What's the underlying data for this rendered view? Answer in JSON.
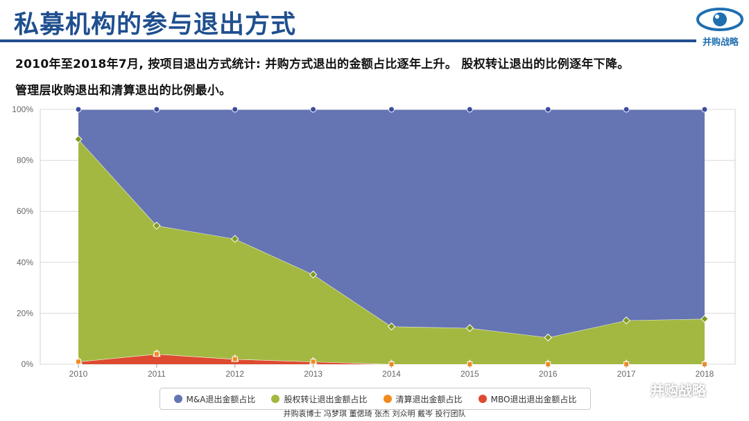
{
  "header": {
    "title": "私募机构的参与退出方式",
    "logo_text": "并购战略",
    "logo_icon": "eye-icon"
  },
  "description": {
    "line1": "2010年至2018年7月, 按项目退出方式统计: 并购方式退出的金额占比逐年上升。 股权转让退出的比例逐年下降。",
    "line2": "管理层收购退出和清算退出的比例最小。"
  },
  "chart_data": {
    "type": "area",
    "stacked": true,
    "x": [
      "2010",
      "2011",
      "2012",
      "2013",
      "2014",
      "2015",
      "2016",
      "2017",
      "2018"
    ],
    "ylim": [
      0,
      100
    ],
    "yticks": [
      "0%",
      "20%",
      "40%",
      "60%",
      "80%",
      "100%"
    ],
    "grid": true,
    "legend_position": "bottom",
    "series": [
      {
        "name": "M&A退出金额占比",
        "color": "#6574b2",
        "marker": "circle",
        "values": [
          11.7,
          45.6,
          50.8,
          64.8,
          85.2,
          85.8,
          89.5,
          82.8,
          82.2
        ]
      },
      {
        "name": "股权转让退出金额占比",
        "color": "#a3b840",
        "marker": "diamond",
        "values": [
          87.3,
          50.4,
          47.2,
          34.2,
          14.8,
          14.2,
          10.5,
          17.2,
          17.8
        ]
      },
      {
        "name": "清算退出金额占比",
        "color": "#f28a1e",
        "marker": "square",
        "values": [
          0,
          0,
          0,
          0,
          0,
          0,
          0,
          0,
          0
        ]
      },
      {
        "name": "MBO退出退出金额占比",
        "color": "#dd4a2f",
        "marker": "triangle",
        "values": [
          1.0,
          4.0,
          2.0,
          1.0,
          0,
          0,
          0,
          0,
          0
        ]
      }
    ]
  },
  "footer": {
    "credits": "并购袁博士 冯梦琪 董偲琦 张杰 刘众明 戴岑 投行团队",
    "watermark": "并购战略",
    "watermark_icon": "wechat-icon"
  }
}
